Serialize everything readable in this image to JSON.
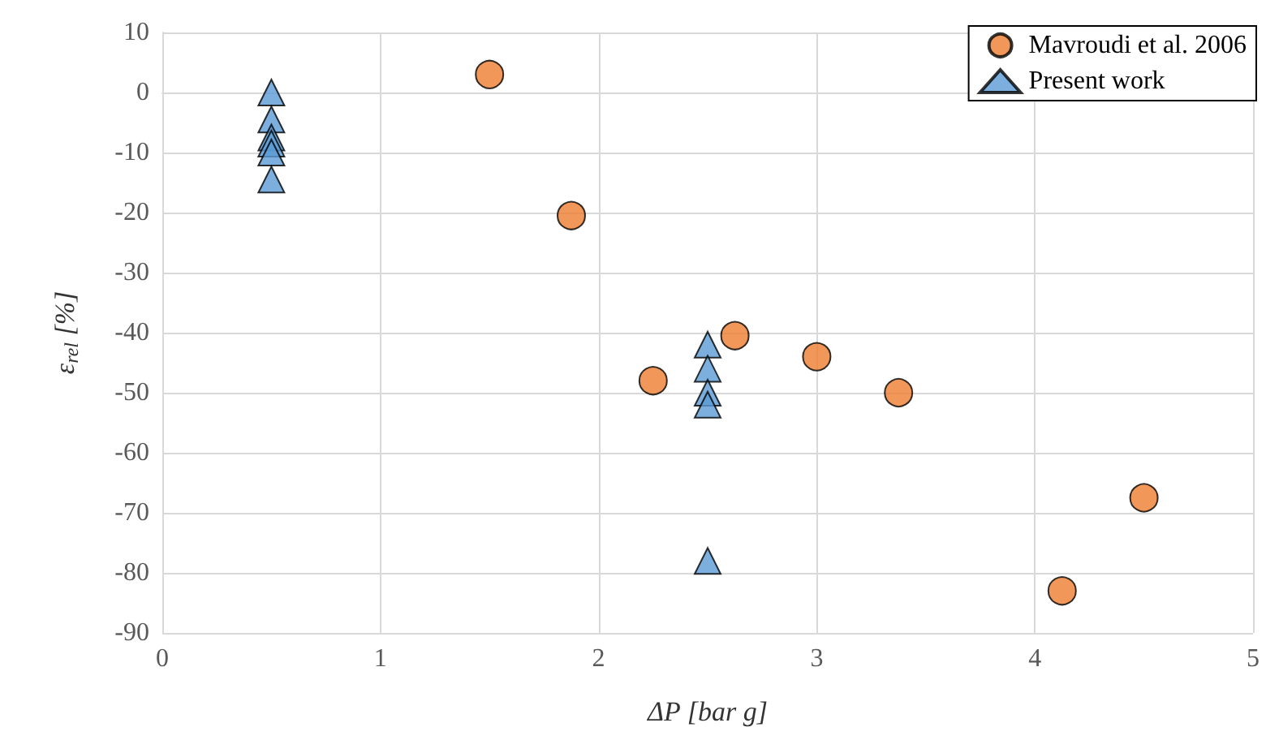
{
  "chart_data": {
    "type": "scatter",
    "xlabel": "ΔP [bar g]",
    "ylabel": "ε$_{rel}$ [%]",
    "xlim": [
      0,
      5
    ],
    "xticks": [
      0,
      1,
      2,
      3,
      4,
      5
    ],
    "ylim": [
      -90,
      10
    ],
    "yticks": [
      -90,
      -80,
      -70,
      -60,
      -50,
      -40,
      -30,
      -20,
      -10,
      0,
      10
    ],
    "grid": true,
    "legend": "top right",
    "series": [
      {
        "name": "Mavroudi et al. 2006",
        "color": "#ed7d31",
        "marker": "circle",
        "x": [
          1.5,
          1.875,
          2.25,
          2.625,
          3.0,
          3.375,
          4.125,
          4.5
        ],
        "values": [
          3,
          -20.5,
          -48,
          -40.5,
          -44,
          -50,
          -83,
          -67.5
        ]
      },
      {
        "name": "Present work",
        "color": "#5b9bd5",
        "marker": "triangle",
        "x": [
          0.5,
          0.5,
          0.5,
          0.5,
          0.5,
          0.5,
          2.5,
          2.5,
          2.5,
          2.5,
          2.5
        ],
        "values": [
          0,
          -4.5,
          -7.5,
          -8.5,
          -10,
          -14.5,
          -42,
          -46,
          -50,
          -52,
          -78
        ]
      }
    ]
  }
}
